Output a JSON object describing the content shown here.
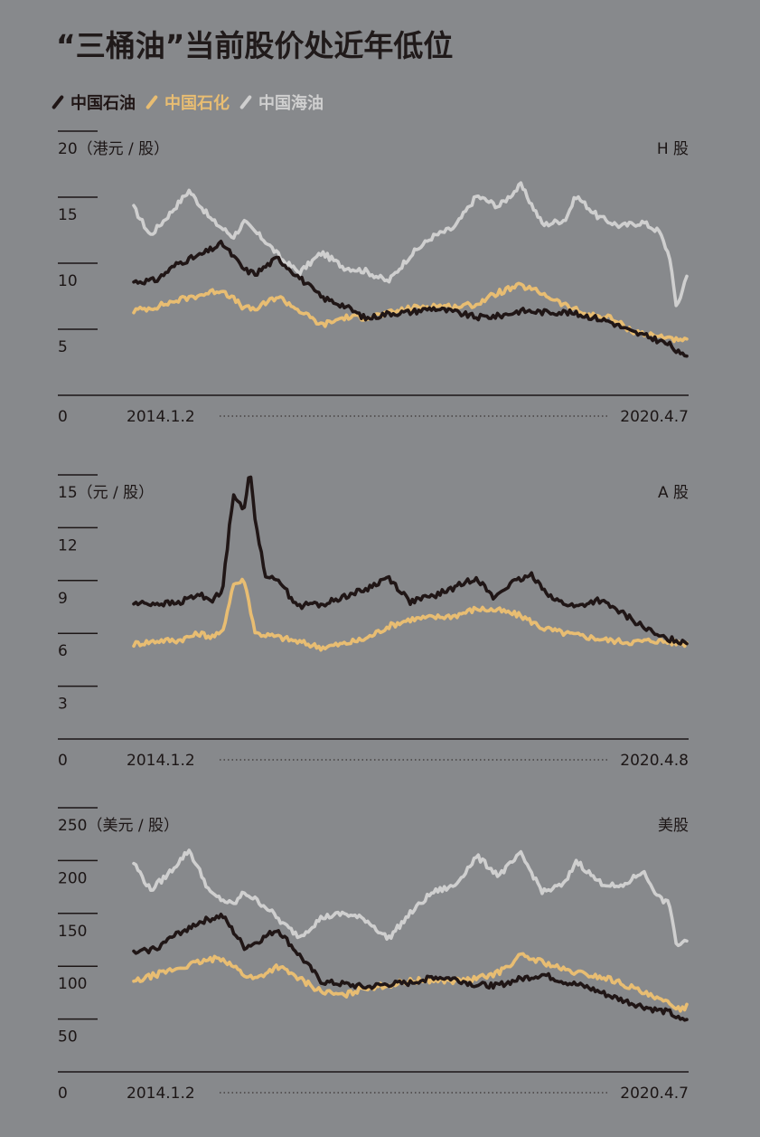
{
  "title": "“三桶油”当前股价处近年低位",
  "legend": [
    {
      "name": "中国石油",
      "color": "#201616"
    },
    {
      "name": "中国石化",
      "color": "#e8bd72"
    },
    {
      "name": "中国海油",
      "color": "#cfcfcf"
    }
  ],
  "chart_data": [
    {
      "type": "line",
      "panel": "H 股",
      "unit": "（港元 / 股）",
      "ylim": [
        0,
        20
      ],
      "yticks": [
        5,
        10,
        15,
        20
      ],
      "zero_label": "0",
      "x_start": "2014.1.2",
      "x_end": "2020.4.7",
      "series": [
        {
          "name": "中国石油",
          "x": [
            0,
            0.04,
            0.08,
            0.12,
            0.16,
            0.2,
            0.22,
            0.26,
            0.3,
            0.34,
            0.38,
            0.42,
            0.46,
            0.5,
            0.54,
            0.58,
            0.62,
            0.66,
            0.7,
            0.74,
            0.78,
            0.82,
            0.86,
            0.9,
            0.94,
            0.97,
            0.99,
            1.0
          ],
          "values": [
            8.6,
            8.7,
            10.0,
            10.6,
            11.5,
            9.5,
            9.2,
            10.4,
            8.9,
            7.4,
            6.8,
            5.8,
            6.2,
            6.3,
            6.6,
            6.3,
            5.9,
            6.0,
            6.4,
            6.3,
            6.3,
            6.0,
            5.6,
            4.8,
            4.3,
            3.8,
            3.0,
            3.1
          ]
        },
        {
          "name": "中国石化",
          "x": [
            0,
            0.04,
            0.08,
            0.12,
            0.16,
            0.2,
            0.22,
            0.26,
            0.3,
            0.34,
            0.38,
            0.42,
            0.46,
            0.5,
            0.54,
            0.58,
            0.62,
            0.66,
            0.7,
            0.74,
            0.78,
            0.82,
            0.86,
            0.9,
            0.94,
            0.97,
            0.99,
            1.0
          ],
          "values": [
            6.4,
            6.7,
            7.2,
            7.6,
            8.0,
            6.6,
            6.5,
            7.5,
            6.4,
            5.3,
            5.9,
            5.9,
            6.2,
            6.6,
            6.8,
            6.7,
            6.9,
            7.8,
            8.3,
            7.7,
            6.8,
            6.1,
            5.9,
            4.9,
            4.5,
            4.4,
            4.0,
            4.2
          ]
        },
        {
          "name": "中国海油",
          "x": [
            0,
            0.03,
            0.06,
            0.1,
            0.14,
            0.18,
            0.2,
            0.24,
            0.27,
            0.3,
            0.34,
            0.38,
            0.42,
            0.46,
            0.5,
            0.54,
            0.58,
            0.62,
            0.66,
            0.7,
            0.74,
            0.78,
            0.8,
            0.84,
            0.88,
            0.92,
            0.95,
            0.97,
            0.98,
            0.99,
            1.0
          ],
          "values": [
            14.2,
            12.1,
            13.5,
            15.5,
            13.3,
            12.0,
            13.1,
            11.6,
            10.2,
            9.3,
            10.8,
            9.7,
            9.4,
            8.6,
            10.6,
            12.0,
            12.7,
            15.1,
            14.3,
            15.9,
            12.9,
            13.3,
            15.1,
            13.5,
            12.8,
            13.1,
            12.4,
            10.4,
            6.7,
            7.6,
            9.2
          ]
        }
      ]
    },
    {
      "type": "line",
      "panel": "A 股",
      "unit": "（元 / 股）",
      "ylim": [
        0,
        15
      ],
      "yticks": [
        3,
        6,
        9,
        12,
        15
      ],
      "zero_label": "0",
      "x_start": "2014.1.2",
      "x_end": "2020.4.8",
      "series": [
        {
          "name": "中国石油",
          "x": [
            0,
            0.05,
            0.08,
            0.1,
            0.12,
            0.14,
            0.16,
            0.18,
            0.2,
            0.21,
            0.22,
            0.24,
            0.26,
            0.28,
            0.3,
            0.32,
            0.34,
            0.38,
            0.42,
            0.46,
            0.5,
            0.54,
            0.58,
            0.62,
            0.65,
            0.68,
            0.72,
            0.76,
            0.8,
            0.84,
            0.88,
            0.92,
            0.95,
            0.98,
            1.0
          ],
          "values": [
            7.7,
            7.7,
            7.7,
            8.0,
            8.2,
            7.9,
            8.3,
            14.0,
            13.0,
            15.3,
            12.4,
            9.0,
            9.2,
            8.2,
            7.5,
            7.7,
            7.6,
            8.1,
            8.5,
            9.2,
            7.8,
            8.1,
            8.6,
            9.2,
            8.0,
            8.8,
            9.3,
            7.9,
            7.5,
            7.9,
            7.2,
            6.4,
            5.8,
            5.6,
            5.5
          ]
        },
        {
          "name": "中国石化",
          "x": [
            0,
            0.05,
            0.08,
            0.1,
            0.12,
            0.14,
            0.16,
            0.18,
            0.2,
            0.22,
            0.24,
            0.26,
            0.3,
            0.34,
            0.38,
            0.42,
            0.46,
            0.5,
            0.54,
            0.58,
            0.62,
            0.66,
            0.7,
            0.74,
            0.78,
            0.82,
            0.86,
            0.9,
            0.94,
            0.97,
            1.0
          ],
          "values": [
            5.4,
            5.6,
            5.6,
            5.8,
            6.0,
            5.8,
            6.0,
            8.8,
            9.0,
            6.0,
            5.9,
            5.8,
            5.5,
            5.2,
            5.4,
            5.7,
            6.4,
            6.8,
            6.9,
            7.0,
            7.4,
            7.3,
            7.0,
            6.3,
            6.0,
            5.8,
            5.6,
            5.5,
            5.6,
            5.5,
            5.4
          ]
        }
      ]
    },
    {
      "type": "line",
      "panel": "美股",
      "unit": "（美元 / 股）",
      "ylim": [
        0,
        250
      ],
      "yticks": [
        50,
        100,
        150,
        200,
        250
      ],
      "zero_label": "0",
      "x_start": "2014.1.2",
      "x_end": "2020.4.7",
      "series": [
        {
          "name": "中国石油",
          "x": [
            0,
            0.04,
            0.08,
            0.12,
            0.16,
            0.2,
            0.22,
            0.26,
            0.3,
            0.34,
            0.38,
            0.42,
            0.46,
            0.5,
            0.54,
            0.58,
            0.62,
            0.66,
            0.7,
            0.74,
            0.78,
            0.82,
            0.86,
            0.9,
            0.94,
            0.97,
            0.99,
            1.0
          ],
          "values": [
            112,
            117,
            131,
            142,
            148,
            118,
            122,
            135,
            110,
            85,
            83,
            80,
            83,
            84,
            90,
            88,
            82,
            82,
            88,
            92,
            85,
            80,
            72,
            65,
            59,
            56,
            48,
            50
          ]
        },
        {
          "name": "中国石化",
          "x": [
            0,
            0.04,
            0.08,
            0.12,
            0.16,
            0.2,
            0.22,
            0.26,
            0.3,
            0.34,
            0.38,
            0.42,
            0.46,
            0.5,
            0.54,
            0.58,
            0.62,
            0.66,
            0.7,
            0.74,
            0.78,
            0.82,
            0.86,
            0.9,
            0.94,
            0.97,
            0.99,
            1.0
          ],
          "values": [
            85,
            92,
            98,
            104,
            108,
            92,
            88,
            100,
            88,
            76,
            72,
            80,
            82,
            86,
            87,
            86,
            88,
            94,
            110,
            104,
            96,
            92,
            88,
            80,
            70,
            64,
            60,
            62
          ]
        },
        {
          "name": "中国海油",
          "x": [
            0,
            0.03,
            0.06,
            0.1,
            0.14,
            0.18,
            0.2,
            0.24,
            0.27,
            0.3,
            0.34,
            0.38,
            0.42,
            0.46,
            0.5,
            0.54,
            0.58,
            0.62,
            0.66,
            0.7,
            0.74,
            0.78,
            0.8,
            0.84,
            0.88,
            0.92,
            0.95,
            0.97,
            0.98,
            0.99,
            1.0
          ],
          "values": [
            198,
            172,
            186,
            210,
            168,
            158,
            170,
            156,
            140,
            128,
            146,
            150,
            144,
            126,
            150,
            170,
            176,
            204,
            186,
            206,
            170,
            178,
            200,
            180,
            174,
            190,
            165,
            158,
            120,
            122,
            125
          ]
        }
      ]
    }
  ]
}
